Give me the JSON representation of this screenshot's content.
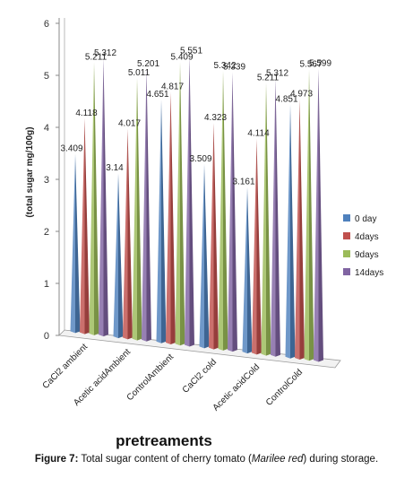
{
  "chart_data": {
    "type": "bar",
    "style": "3d-cone",
    "xlabel": "pretreaments",
    "ylabel": "(total sugar mg/100g)",
    "ylim": [
      0,
      6
    ],
    "yticks": [
      "0",
      "1",
      "2",
      "3",
      "4",
      "5",
      "6"
    ],
    "grid": false,
    "legend_position": "right",
    "categories": [
      "CaCl2 ambient",
      "Acetic acidAmbient",
      "ControlAmbient",
      "CaCl2 cold",
      "Acetic acidCold",
      "ControlCold"
    ],
    "series": [
      {
        "name": "0 day",
        "color": "#4f81bd",
        "values": [
          3.409,
          3.14,
          4.651,
          3.509,
          3.161,
          4.851
        ]
      },
      {
        "name": "4days",
        "color": "#c0504d",
        "values": [
          4.118,
          4.017,
          4.817,
          4.323,
          4.114,
          4.973
        ]
      },
      {
        "name": "9days",
        "color": "#9bbb59",
        "values": [
          5.211,
          5.011,
          5.409,
          5.342,
          5.211,
          5.567
        ]
      },
      {
        "name": "14days",
        "color": "#8064a2",
        "values": [
          5.312,
          5.201,
          5.551,
          5.339,
          5.312,
          5.599
        ]
      }
    ],
    "value_labels": [
      [
        "3.409",
        "4.118",
        "5.211",
        "5.312"
      ],
      [
        "3.14",
        "4.017",
        "5.011",
        "5.201"
      ],
      [
        "4.651",
        "4.817",
        "5.409",
        "5.551"
      ],
      [
        "3.509",
        "4.323",
        "5.342",
        "5.339"
      ],
      [
        "3.161",
        "4.114",
        "5.211",
        "5.312"
      ],
      [
        "4.851",
        "4.973",
        "5.567",
        "5.599"
      ]
    ]
  },
  "caption": {
    "label": "Figure 7:",
    "text_before": " Total sugar content of cherry tomato (",
    "italic": "Marilee red",
    "text_after": ") during storage."
  }
}
